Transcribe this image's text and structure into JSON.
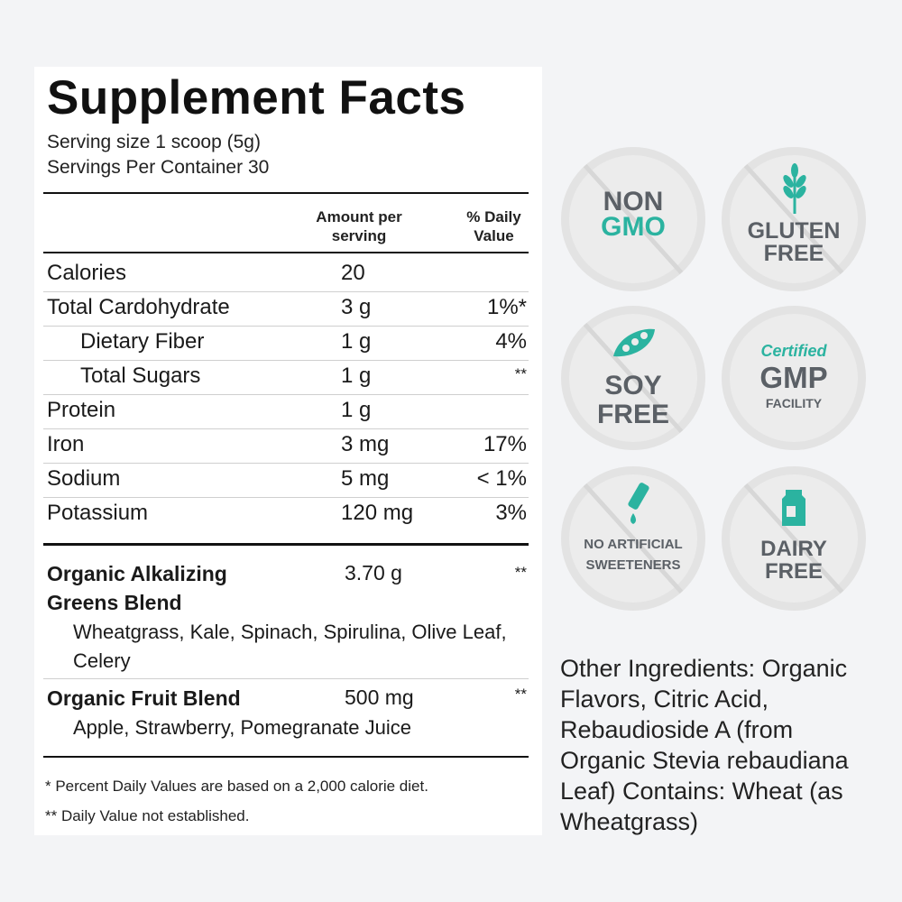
{
  "facts": {
    "title": "Supplement Facts",
    "serving_size": "Serving size 1 scoop (5g)",
    "servings_per_container": "Servings Per Container 30",
    "col_amount_line1": "Amount per",
    "col_amount_line2": "serving",
    "col_dv_line1": "% Daily",
    "col_dv_line2": "Value",
    "rows": [
      {
        "name": "Calories",
        "amount": "20",
        "dv": ""
      },
      {
        "name": "Total Cardohydrate",
        "amount": "3 g",
        "dv": "1%*"
      },
      {
        "name": "Dietary Fiber",
        "amount": "1 g",
        "dv": "4%"
      },
      {
        "name": "Total Sugars",
        "amount": "1 g",
        "dv": "**"
      },
      {
        "name": "Protein",
        "amount": "1 g",
        "dv": ""
      },
      {
        "name": "Iron",
        "amount": "3 mg",
        "dv": "17%"
      },
      {
        "name": "Sodium",
        "amount": "5 mg",
        "dv": "< 1%"
      },
      {
        "name": "Potassium",
        "amount": "120 mg",
        "dv": "3%"
      }
    ],
    "blends": [
      {
        "name": "Organic Alkalizing Greens Blend",
        "amount": "3.70 g",
        "dv": "**",
        "ingredients": "Wheatgrass, Kale, Spinach, Spirulina, Olive Leaf, Celery"
      },
      {
        "name": "Organic Fruit Blend",
        "amount": "500 mg",
        "dv": "**",
        "ingredients": "Apple, Strawberry, Pomegranate Juice"
      }
    ],
    "footnote1": "* Percent Daily Values are based on a 2,000 calorie diet.",
    "footnote2": "** Daily Value not established."
  },
  "badges": {
    "non_gmo": {
      "line1": "NON",
      "line2": "GMO"
    },
    "gluten_free": {
      "line1": "GLUTEN",
      "line2": "FREE",
      "icon": "wheat-icon"
    },
    "soy_free": {
      "line1": "SOY",
      "line2": "FREE",
      "icon": "soybean-icon"
    },
    "gmp": {
      "line1": "Certified",
      "line2": "GMP",
      "line3": "FACILITY"
    },
    "no_artificial": {
      "line1": "NO ARTIFICIAL",
      "line2": "SWEETENERS",
      "icon": "dropper-icon"
    },
    "dairy_free": {
      "line1": "DAIRY",
      "line2": "FREE",
      "icon": "milk-carton-icon"
    }
  },
  "colors": {
    "teal": "#2bb3a0",
    "badge_text": "#5b6066",
    "badge_bg": "#ececec"
  },
  "other_ingredients": "Other Ingredients: Organic Flavors, Citric Acid, Rebaudioside A (from Organic Stevia rebaudiana Leaf) Contains: Wheat (as Wheatgrass)"
}
